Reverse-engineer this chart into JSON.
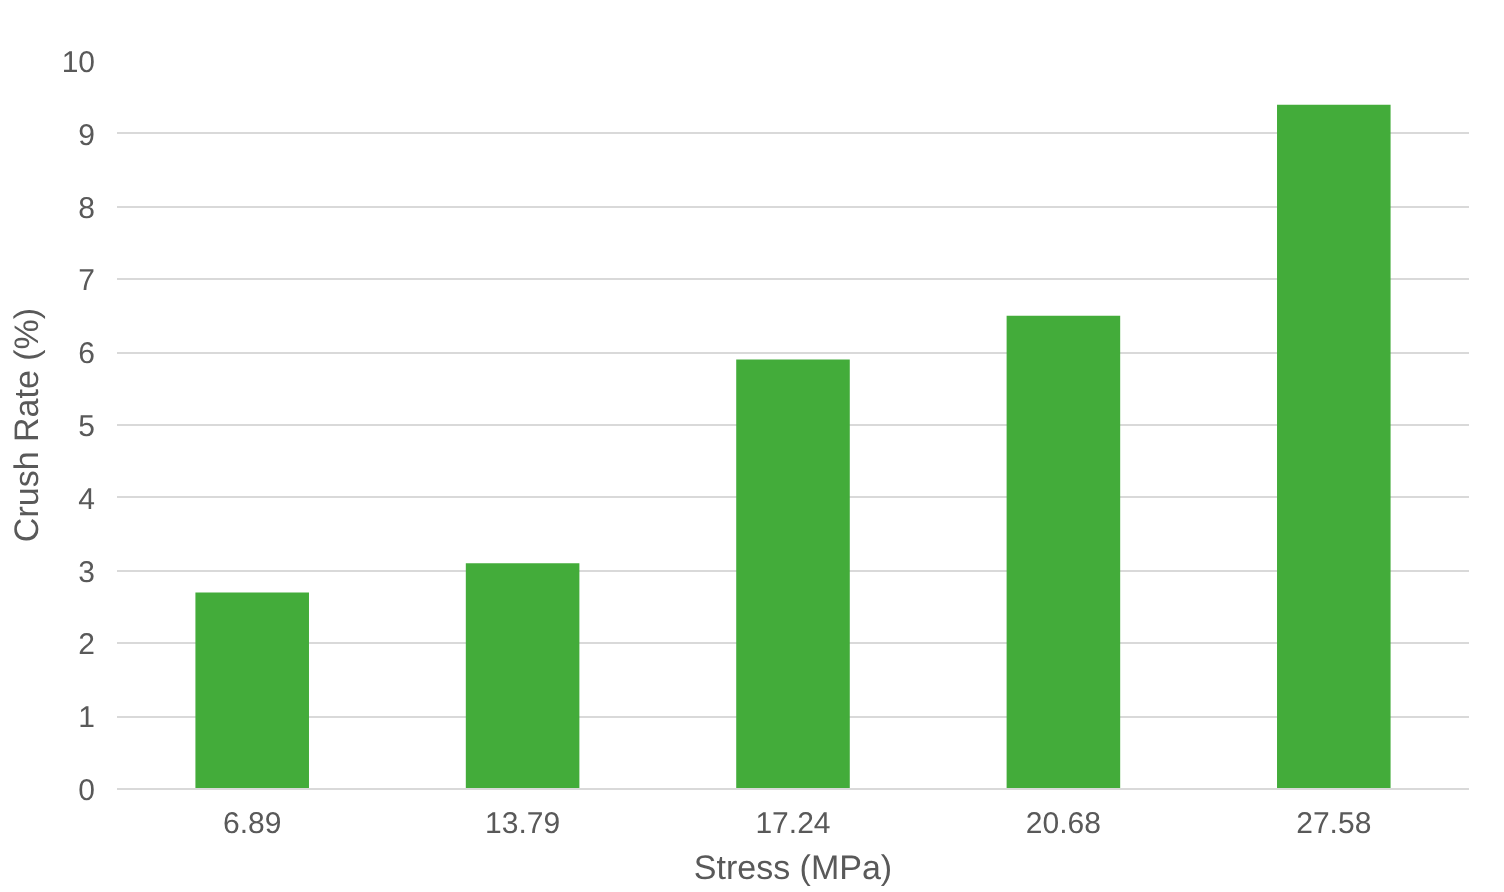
{
  "chart_data": {
    "type": "bar",
    "xlabel": "Stress (MPa)",
    "ylabel": "Crush Rate (%)",
    "categories": [
      "6.89",
      "13.79",
      "17.24",
      "20.68",
      "27.58"
    ],
    "values": [
      2.7,
      3.1,
      5.9,
      6.5,
      9.4
    ],
    "color": "#43ac3a",
    "ylim": [
      0,
      10
    ],
    "yticks": [
      0,
      1,
      2,
      3,
      4,
      5,
      6,
      7,
      8,
      9,
      10
    ],
    "grid": "y"
  }
}
